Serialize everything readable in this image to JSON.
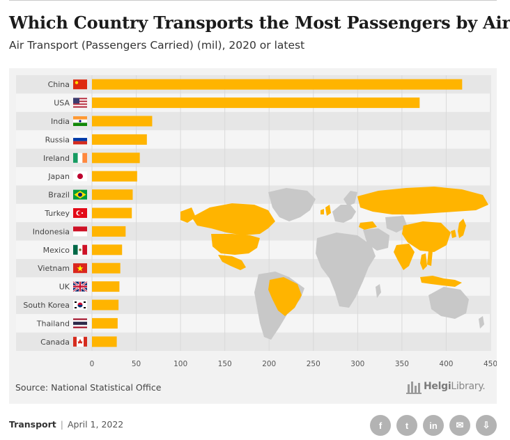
{
  "header": {
    "title": "Which Country Transports the Most Passengers by Air?",
    "subtitle": "Air Transport (Passengers Carried) (mil), 2020 or latest"
  },
  "chart_data": {
    "type": "bar",
    "orientation": "horizontal",
    "title": "Which Country Transports the Most Passengers by Air?",
    "subtitle": "Air Transport (Passengers Carried) (mil), 2020 or latest",
    "categories": [
      "China",
      "USA",
      "India",
      "Russia",
      "Ireland",
      "Japan",
      "Brazil",
      "Turkey",
      "Indonesia",
      "Mexico",
      "Vietnam",
      "UK",
      "South Korea",
      "Thailand",
      "Canada"
    ],
    "values": [
      418,
      370,
      68,
      62,
      54,
      51,
      46,
      45,
      38,
      34,
      32,
      31,
      30,
      29,
      28
    ],
    "xlim": [
      0,
      450
    ],
    "xticks": [
      0,
      50,
      100,
      150,
      200,
      250,
      300,
      350,
      400,
      450
    ],
    "bar_color": "#FFB400",
    "grid": true
  },
  "map": {
    "highlight_color": "#FFB400",
    "base_color": "#c8c8c8",
    "highlighted_countries": [
      "China",
      "USA",
      "India",
      "Russia",
      "Ireland",
      "Japan",
      "Brazil",
      "Turkey",
      "Indonesia",
      "Mexico",
      "Vietnam",
      "UK",
      "South Korea",
      "Thailand",
      "Canada"
    ]
  },
  "source": "Source: National Statistical Office",
  "brand": {
    "name_bold": "Helgi",
    "name_rest": "Library."
  },
  "footer": {
    "category": "Transport",
    "date": "April 1, 2022"
  },
  "share": [
    {
      "icon": "facebook-icon",
      "label": "f"
    },
    {
      "icon": "twitter-icon",
      "label": "t"
    },
    {
      "icon": "linkedin-icon",
      "label": "in"
    },
    {
      "icon": "email-icon",
      "label": "✉"
    },
    {
      "icon": "download-icon",
      "label": "⇩"
    }
  ]
}
